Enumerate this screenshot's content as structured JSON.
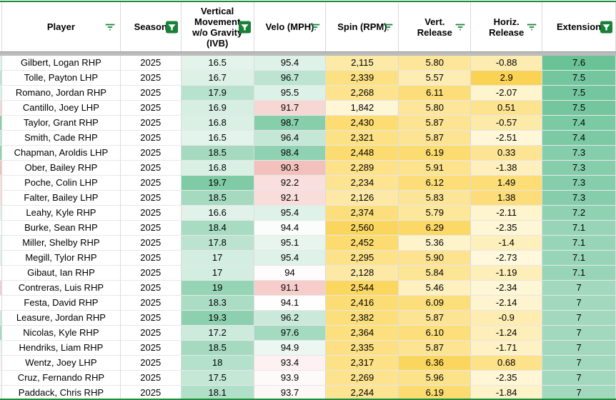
{
  "colors": {
    "accent_green": "#1e8e3e",
    "filter_icon_green": "#188038",
    "divider_gray": "#bcbcbc",
    "grid_line": "#d9d9d9",
    "scale_green": "#57bb8a",
    "scale_red": "#e67c73",
    "scale_yellow": "#fbd24f"
  },
  "table": {
    "columns": [
      {
        "id": "player",
        "label": "Player",
        "icon": "filter-lines-icon"
      },
      {
        "id": "season",
        "label": "Season",
        "icon": "filter-active-icon"
      },
      {
        "id": "ivb",
        "label": "Vertical Movement w/o Gravity (IVB)",
        "icon": "filter-active-icon"
      },
      {
        "id": "velo",
        "label": "Velo (MPH)",
        "icon": "filter-lines-icon"
      },
      {
        "id": "spin",
        "label": "Spin (RPM)",
        "icon": "filter-lines-icon"
      },
      {
        "id": "vrel",
        "label": "Vert. Release",
        "icon": "filter-lines-icon"
      },
      {
        "id": "hrel",
        "label": "Horiz. Release",
        "icon": "filter-lines-icon"
      },
      {
        "id": "ext",
        "label": "Extension",
        "icon": "filter-active-icon"
      }
    ],
    "color_scales": {
      "ivb": [
        [
          15.6,
          "#ffffff"
        ],
        [
          21.0,
          "#57bb8a"
        ]
      ],
      "velo": [
        [
          86.0,
          "#e67c73"
        ],
        [
          94.2,
          "#ffffff"
        ],
        [
          100.5,
          "#57bb8a"
        ]
      ],
      "spin": [
        [
          1700,
          "#fffceb"
        ],
        [
          2650,
          "#fbd24f"
        ]
      ],
      "vrel": [
        [
          5.05,
          "#fffceb"
        ],
        [
          6.5,
          "#fbd24f"
        ]
      ],
      "hrel": [
        [
          -3.3,
          "#fffceb"
        ],
        [
          3.1,
          "#fbd24f"
        ]
      ],
      "ext": [
        [
          6.0,
          "#ffffff"
        ],
        [
          7.8,
          "#57bb8a"
        ]
      ]
    },
    "rows": [
      {
        "player": "Gilbert, Logan RHP",
        "season": "2025",
        "ivb": "16.5",
        "velo": "95.4",
        "spin": "2,115",
        "vrel": "5.80",
        "hrel": "-0.88",
        "ext": "7.6"
      },
      {
        "player": "Tolle, Payton LHP",
        "season": "2025",
        "ivb": "16.7",
        "velo": "96.7",
        "spin": "2,339",
        "vrel": "5.57",
        "hrel": "2.9",
        "ext": "7.5"
      },
      {
        "player": "Romano, Jordan RHP",
        "season": "2025",
        "ivb": "17.9",
        "velo": "95.5",
        "spin": "2,268",
        "vrel": "6.11",
        "hrel": "-2.07",
        "ext": "7.5"
      },
      {
        "player": "Cantillo, Joey LHP",
        "season": "2025",
        "ivb": "16.9",
        "velo": "91.7",
        "spin": "1,842",
        "vrel": "5.80",
        "hrel": "0.51",
        "ext": "7.5"
      },
      {
        "player": "Taylor, Grant RHP",
        "season": "2025",
        "ivb": "16.8",
        "velo": "98.7",
        "spin": "2,430",
        "vrel": "5.87",
        "hrel": "-0.57",
        "ext": "7.4"
      },
      {
        "player": "Smith, Cade RHP",
        "season": "2025",
        "ivb": "16.5",
        "velo": "96.4",
        "spin": "2,321",
        "vrel": "5.87",
        "hrel": "-2.51",
        "ext": "7.4"
      },
      {
        "player": "Chapman, Aroldis LHP",
        "season": "2025",
        "ivb": "18.5",
        "velo": "98.4",
        "spin": "2,448",
        "vrel": "6.19",
        "hrel": "0.33",
        "ext": "7.3"
      },
      {
        "player": "Ober, Bailey RHP",
        "season": "2025",
        "ivb": "16.8",
        "velo": "90.3",
        "spin": "2,289",
        "vrel": "5.91",
        "hrel": "-1.38",
        "ext": "7.3"
      },
      {
        "player": "Poche, Colin LHP",
        "season": "2025",
        "ivb": "19.7",
        "velo": "92.2",
        "spin": "2,234",
        "vrel": "6.12",
        "hrel": "1.49",
        "ext": "7.3"
      },
      {
        "player": "Falter, Bailey LHP",
        "season": "2025",
        "ivb": "18.5",
        "velo": "92.1",
        "spin": "2,126",
        "vrel": "5.83",
        "hrel": "1.38",
        "ext": "7.3"
      },
      {
        "player": "Leahy, Kyle RHP",
        "season": "2025",
        "ivb": "16.6",
        "velo": "95.4",
        "spin": "2,374",
        "vrel": "5.79",
        "hrel": "-2.11",
        "ext": "7.2"
      },
      {
        "player": "Burke, Sean RHP",
        "season": "2025",
        "ivb": "18.4",
        "velo": "94.4",
        "spin": "2,560",
        "vrel": "6.29",
        "hrel": "-2.35",
        "ext": "7.1"
      },
      {
        "player": "Miller, Shelby RHP",
        "season": "2025",
        "ivb": "17.8",
        "velo": "95.1",
        "spin": "2,452",
        "vrel": "5.36",
        "hrel": "-1.4",
        "ext": "7.1"
      },
      {
        "player": "Megill, Tylor RHP",
        "season": "2025",
        "ivb": "17",
        "velo": "95.4",
        "spin": "2,295",
        "vrel": "5.90",
        "hrel": "-2.73",
        "ext": "7.1"
      },
      {
        "player": "Gibaut, Ian RHP",
        "season": "2025",
        "ivb": "17",
        "velo": "94",
        "spin": "2,128",
        "vrel": "5.84",
        "hrel": "-1.19",
        "ext": "7.1"
      },
      {
        "player": "Contreras, Luis RHP",
        "season": "2025",
        "ivb": "19",
        "velo": "91.1",
        "spin": "2,544",
        "vrel": "5.46",
        "hrel": "-2.34",
        "ext": "7"
      },
      {
        "player": "Festa, David RHP",
        "season": "2025",
        "ivb": "18.3",
        "velo": "94.1",
        "spin": "2,416",
        "vrel": "6.09",
        "hrel": "-2.14",
        "ext": "7"
      },
      {
        "player": "Leasure, Jordan RHP",
        "season": "2025",
        "ivb": "19.3",
        "velo": "96.2",
        "spin": "2,382",
        "vrel": "5.87",
        "hrel": "-0.9",
        "ext": "7"
      },
      {
        "player": "Nicolas, Kyle RHP",
        "season": "2025",
        "ivb": "17.2",
        "velo": "97.6",
        "spin": "2,364",
        "vrel": "6.10",
        "hrel": "-1.24",
        "ext": "7"
      },
      {
        "player": "Hendriks, Liam RHP",
        "season": "2025",
        "ivb": "18.5",
        "velo": "94.9",
        "spin": "2,335",
        "vrel": "5.87",
        "hrel": "-1.71",
        "ext": "7"
      },
      {
        "player": "Wentz, Joey LHP",
        "season": "2025",
        "ivb": "18",
        "velo": "93.4",
        "spin": "2,317",
        "vrel": "6.36",
        "hrel": "0.68",
        "ext": "7"
      },
      {
        "player": "Cruz, Fernando RHP",
        "season": "2025",
        "ivb": "17.5",
        "velo": "93.9",
        "spin": "2,269",
        "vrel": "5.96",
        "hrel": "-2.35",
        "ext": "7"
      },
      {
        "player": "Paddack, Chris RHP",
        "season": "2025",
        "ivb": "18.1",
        "velo": "93.7",
        "spin": "2,244",
        "vrel": "6.19",
        "hrel": "-1.84",
        "ext": "7"
      }
    ]
  }
}
